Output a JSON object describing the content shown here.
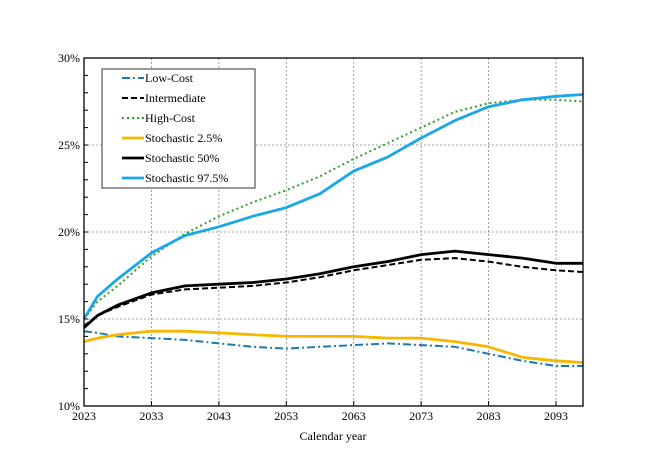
{
  "chart_data": {
    "type": "line",
    "title": "",
    "xlabel": "Calendar year",
    "ylabel": "",
    "xlim": [
      2023,
      2097
    ],
    "ylim": [
      10,
      30
    ],
    "xticks": [
      "2023",
      "2033",
      "2043",
      "2053",
      "2063",
      "2073",
      "2083",
      "2093"
    ],
    "yticks": [
      "10%",
      "15%",
      "20%",
      "25%",
      "30%"
    ],
    "grid": true,
    "legend_position": "top-left",
    "x": [
      2023,
      2025,
      2028,
      2033,
      2038,
      2043,
      2048,
      2053,
      2058,
      2063,
      2068,
      2073,
      2078,
      2083,
      2088,
      2093,
      2097
    ],
    "series": [
      {
        "name": "Low-Cost",
        "color": "#1f77b4",
        "style": "dashdot",
        "values": [
          14.3,
          14.2,
          14.0,
          13.9,
          13.8,
          13.6,
          13.4,
          13.3,
          13.4,
          13.5,
          13.6,
          13.5,
          13.4,
          13.0,
          12.6,
          12.3,
          12.3
        ]
      },
      {
        "name": "Intermediate",
        "color": "#000000",
        "style": "dashed",
        "values": [
          14.6,
          15.2,
          15.7,
          16.4,
          16.7,
          16.8,
          16.9,
          17.1,
          17.4,
          17.8,
          18.1,
          18.4,
          18.5,
          18.3,
          18.0,
          17.8,
          17.7
        ]
      },
      {
        "name": "High-Cost",
        "color": "#2ca02c",
        "style": "dotted",
        "values": [
          15.0,
          16.0,
          16.9,
          18.6,
          19.9,
          20.9,
          21.7,
          22.4,
          23.2,
          24.2,
          25.1,
          26.0,
          26.9,
          27.4,
          27.6,
          27.6,
          27.5
        ]
      },
      {
        "name": "Stochastic 2.5%",
        "color": "#f5b800",
        "style": "solid",
        "values": [
          13.7,
          13.9,
          14.1,
          14.3,
          14.3,
          14.2,
          14.1,
          14.0,
          14.0,
          14.0,
          13.9,
          13.9,
          13.7,
          13.4,
          12.8,
          12.6,
          12.5
        ]
      },
      {
        "name": "Stochastic 50%",
        "color": "#000000",
        "style": "solid",
        "values": [
          14.5,
          15.2,
          15.8,
          16.5,
          16.9,
          17.0,
          17.1,
          17.3,
          17.6,
          18.0,
          18.3,
          18.7,
          18.9,
          18.7,
          18.5,
          18.2,
          18.2
        ]
      },
      {
        "name": "Stochastic 97.5%",
        "color": "#1aa7e8",
        "style": "solid",
        "values": [
          15.0,
          16.3,
          17.3,
          18.8,
          19.8,
          20.3,
          20.9,
          21.4,
          22.2,
          23.5,
          24.3,
          25.4,
          26.4,
          27.2,
          27.6,
          27.8,
          27.9
        ]
      }
    ]
  }
}
